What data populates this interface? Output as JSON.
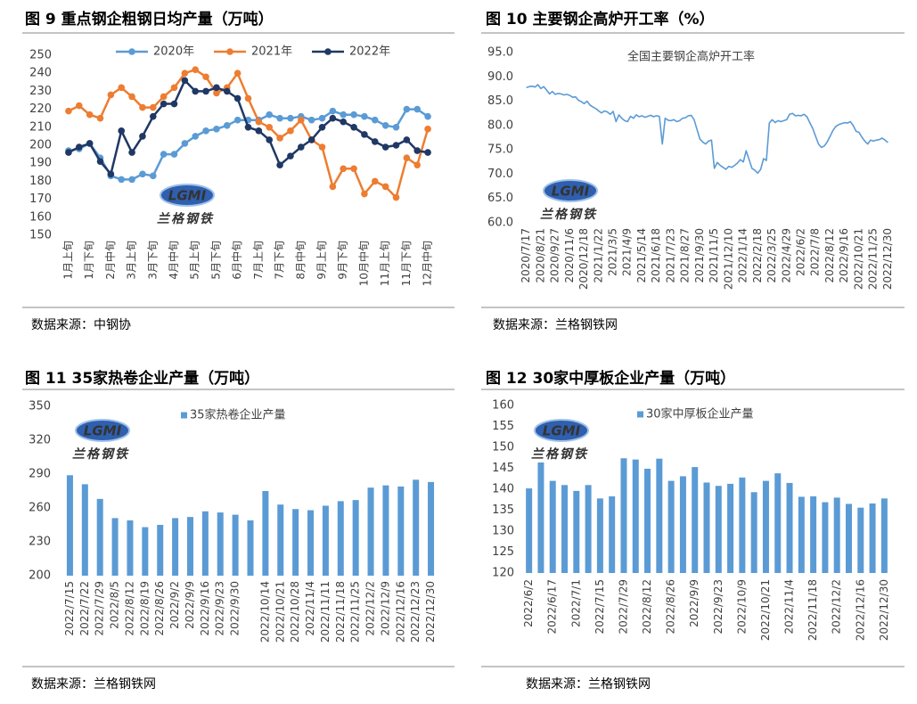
{
  "logo": {
    "mark": "LGMI",
    "name": "兰格钢铁"
  },
  "chart_data": [
    {
      "type": "line",
      "title": "图 9 重点钢企粗钢日均产量（万吨）",
      "source": "数据来源：中钢协",
      "categories": [
        "1月上旬",
        null,
        "1月下旬",
        null,
        "2月中旬",
        null,
        "3月上旬",
        null,
        "3月下旬",
        null,
        "4月中旬",
        null,
        "5月上旬",
        null,
        "5月下旬",
        null,
        "6月中旬",
        null,
        "7月上旬",
        null,
        "7月下旬",
        null,
        "8月中旬",
        null,
        "9月上旬",
        null,
        "9月下旬",
        null,
        "10月中旬",
        null,
        "11月上旬",
        null,
        "11月下旬",
        null,
        "12月中旬"
      ],
      "series": [
        {
          "name": "2020年",
          "color": "#5b9bd5",
          "values": [
            197,
            198,
            201,
            193,
            183,
            181,
            181,
            184,
            183,
            195,
            195,
            201,
            205,
            208,
            209,
            211,
            214,
            214,
            214,
            217,
            215,
            215,
            216,
            214,
            215,
            219,
            217,
            217,
            216,
            214,
            211,
            210,
            220,
            220,
            216
          ]
        },
        {
          "name": "2021年",
          "color": "#ed7d31",
          "values": [
            219,
            222,
            217,
            215,
            228,
            232,
            227,
            221,
            221,
            227,
            232,
            240,
            242,
            238,
            229,
            232,
            240,
            226,
            213,
            210,
            204,
            208,
            214,
            203,
            199,
            177,
            187,
            187,
            173,
            180,
            177,
            171,
            193,
            189,
            209
          ]
        },
        {
          "name": "2022年",
          "color": "#1f3864",
          "values": [
            196,
            199,
            201,
            191,
            184,
            208,
            196,
            205,
            216,
            223,
            223,
            236,
            230,
            230,
            232,
            230,
            226,
            210,
            208,
            203,
            189,
            194,
            199,
            203,
            210,
            215,
            213,
            210,
            206,
            202,
            199,
            200,
            203,
            197,
            196
          ]
        }
      ],
      "ylim": [
        150,
        250
      ],
      "yticks": [
        150,
        160,
        170,
        180,
        190,
        200,
        210,
        220,
        230,
        240,
        250
      ],
      "legend": "top",
      "markers": true
    },
    {
      "type": "line",
      "title": "图 10 主要钢企高炉开工率（%）",
      "source": "数据来源：兰格钢铁网",
      "categories": [
        "2020/7/17",
        null,
        null,
        null,
        null,
        "2020/8/21",
        null,
        null,
        null,
        null,
        "2020/9/27",
        null,
        null,
        null,
        null,
        "2020/11/6",
        null,
        null,
        null,
        null,
        "2020/12/18",
        null,
        null,
        null,
        null,
        "2021/1/22",
        null,
        null,
        null,
        null,
        "2021/3/5",
        null,
        null,
        null,
        null,
        "2021/4/9",
        null,
        null,
        null,
        null,
        "2021/5/14",
        null,
        null,
        null,
        null,
        "2021/6/18",
        null,
        null,
        null,
        null,
        "2021/7/23",
        null,
        null,
        null,
        null,
        "2021/8/27",
        null,
        null,
        null,
        null,
        "2021/9/30",
        null,
        null,
        null,
        null,
        "2021/11/5",
        null,
        null,
        null,
        null,
        "2021/12/10",
        null,
        null,
        null,
        null,
        "2022/1/14",
        null,
        null,
        null,
        null,
        "2022/2/18",
        null,
        null,
        null,
        null,
        "2022/3/25",
        null,
        null,
        null,
        null,
        "2022/4/29",
        null,
        null,
        null,
        null,
        "2022/6/2",
        null,
        null,
        null,
        null,
        "2022/7/8",
        null,
        null,
        null,
        null,
        "2022/8/12",
        null,
        null,
        null,
        null,
        "2022/9/16",
        null,
        null,
        null,
        null,
        "2022/10/21",
        null,
        null,
        null,
        null,
        "2022/11/25",
        null,
        null,
        null,
        null,
        "2022/12/30"
      ],
      "series": [
        {
          "name": "全国主要钢企高炉开工率",
          "color": "#5b9bd5",
          "values": [
            87.8,
            88.0,
            88.1,
            87.9,
            88.4,
            87.6,
            88.0,
            87.3,
            86.5,
            87.0,
            86.4,
            86.6,
            86.5,
            86.3,
            86.4,
            86.2,
            85.8,
            85.9,
            85.2,
            84.9,
            84.5,
            85.0,
            84.2,
            83.8,
            83.5,
            83.0,
            82.6,
            83.0,
            82.8,
            82.3,
            82.9,
            80.8,
            82.2,
            81.5,
            81.0,
            80.8,
            81.9,
            81.5,
            82.2,
            81.8,
            82.0,
            81.7,
            81.9,
            82.1,
            81.8,
            82.0,
            81.9,
            76.2,
            81.5,
            81.1,
            81.0,
            81.2,
            80.8,
            81.0,
            81.5,
            81.6,
            82.0,
            82.1,
            81.2,
            79.2,
            77.2,
            76.6,
            76.2,
            76.8,
            77.0,
            71.2,
            72.4,
            71.8,
            71.4,
            71.0,
            71.6,
            71.4,
            71.8,
            72.3,
            73.0,
            72.5,
            74.8,
            73.0,
            71.2,
            70.8,
            70.2,
            71.0,
            73.2,
            72.8,
            80.5,
            81.2,
            80.6,
            81.0,
            80.8,
            81.0,
            81.2,
            82.3,
            82.5,
            82.0,
            82.1,
            82.0,
            82.3,
            81.8,
            80.6,
            79.4,
            77.8,
            76.2,
            75.5,
            75.8,
            76.6,
            77.8,
            79.0,
            79.8,
            80.2,
            80.4,
            80.6,
            80.5,
            80.8,
            80.0,
            78.8,
            78.6,
            77.6,
            76.8,
            76.2,
            77.0,
            76.8,
            77.0,
            77.1,
            77.4,
            77.0,
            76.5
          ]
        }
      ],
      "ylim": [
        60,
        95
      ],
      "yticks": [
        {
          "value": 60,
          "label": "60.0"
        },
        {
          "value": 65,
          "label": "65.0"
        },
        {
          "value": 70,
          "label": "70.0"
        },
        {
          "value": 75,
          "label": "75.0"
        },
        {
          "value": 80,
          "label": "80.0"
        },
        {
          "value": 85,
          "label": "85.0"
        },
        {
          "value": 90,
          "label": "90.0"
        },
        {
          "value": 95,
          "label": "95.0"
        }
      ],
      "legend": "top",
      "markers": false
    },
    {
      "type": "bar",
      "title": "图 11 35家热卷企业产量（万吨）",
      "source": "数据来源：兰格钢铁网",
      "categories": [
        "2022/7/15",
        "2022/7/22",
        "2022/7/29",
        "2022/8/5",
        "2022/8/12",
        "2022/8/19",
        "2022/8/26",
        "2022/9/2",
        "2022/9/9",
        "2022/9/16",
        "2022/9/23",
        "2022/9/30",
        null,
        "2022/10/14",
        "2022/10/21",
        "2022/10/28",
        "2022/11/4",
        "2022/11/11",
        "2022/11/18",
        "2022/11/25",
        "2022/12/2",
        "2022/12/9",
        "2022/12/16",
        "2022/12/23",
        "2022/12/30"
      ],
      "series": [
        {
          "name": "35家热卷企业产量",
          "color": "#5b9bd5",
          "values": [
            289,
            281,
            268,
            251,
            249,
            243,
            245,
            251,
            252,
            257,
            256,
            254,
            249,
            275,
            263,
            259,
            258,
            262,
            266,
            267,
            278,
            280,
            279,
            285,
            283
          ]
        }
      ],
      "ylim": [
        200,
        350
      ],
      "yticks": [
        200,
        230,
        260,
        290,
        320,
        350
      ],
      "legend": "top"
    },
    {
      "type": "bar",
      "title": "图 12 30家中厚板企业产量（万吨）",
      "source": "数据来源：兰格钢铁网",
      "categories": [
        "2022/6/2",
        null,
        "2022/6/17",
        null,
        "2022/7/1",
        null,
        "2022/7/15",
        null,
        "2022/7/29",
        null,
        "2022/8/12",
        null,
        "2022/8/26",
        null,
        "2022/9/9",
        null,
        "2022/9/23",
        null,
        "2022/10/9",
        null,
        "2022/10/21",
        null,
        "2022/11/4",
        null,
        "2022/11/18",
        null,
        "2022/12/2",
        null,
        "2022/12/16",
        null,
        "2022/12/30"
      ],
      "series": [
        {
          "name": "30家中厚板企业产量",
          "color": "#5b9bd5",
          "values": [
            140.2,
            146.4,
            142,
            141,
            139.6,
            141,
            137.8,
            138.3,
            147.4,
            147.1,
            144.9,
            147.3,
            142,
            143.1,
            145.3,
            141.6,
            140.8,
            141.3,
            142.8,
            139.3,
            142,
            143.8,
            141.5,
            138.2,
            138.3,
            136.9,
            138,
            136.5,
            135.6,
            136.6,
            137.8
          ]
        }
      ],
      "ylim": [
        120,
        160
      ],
      "yticks": [
        120,
        125,
        130,
        135,
        140,
        145,
        150,
        155,
        160
      ],
      "legend": "top"
    }
  ]
}
